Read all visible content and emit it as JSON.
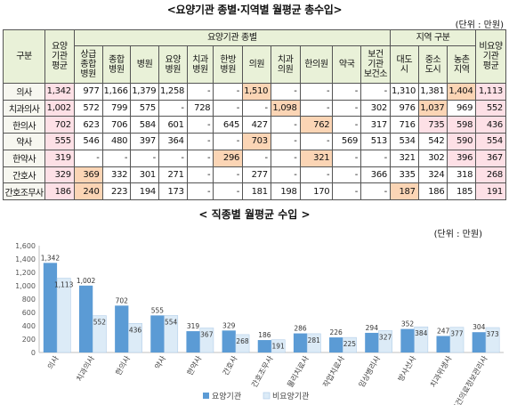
{
  "table": {
    "title": "<요양기관 종별·지역별 월평균 총수입>",
    "unit": "(단위 : 만원)",
    "header": {
      "group_col": "구분",
      "avg_col": "요양\n기관\n평균",
      "type_group": "요양기관 종별",
      "region_group": "지역 구분",
      "nonmed_col": "비요양\n기관\n평균",
      "type_cols": [
        "상급\n종합\n병원",
        "종합\n병원",
        "병원",
        "요양\n병원",
        "치과\n병원",
        "한방\n병원",
        "의원",
        "치과\n의원",
        "한의원",
        "약국",
        "보건\n기관\n보건소"
      ],
      "region_cols": [
        "대도\n시",
        "중소\n도시",
        "농촌\n지역"
      ]
    },
    "rows": [
      {
        "label": "의사",
        "cells": [
          "1,342",
          "977",
          "1,166",
          "1,379",
          "1,258",
          "-",
          "-",
          "1,510",
          "-",
          "-",
          "-",
          "-",
          "1,310",
          "1,381",
          "1,404",
          "1,113"
        ]
      },
      {
        "label": "치과의사",
        "cells": [
          "1,002",
          "572",
          "799",
          "575",
          "-",
          "728",
          "-",
          "-",
          "1,098",
          "-",
          "-",
          "302",
          "976",
          "1,037",
          "969",
          "552"
        ]
      },
      {
        "label": "한의사",
        "cells": [
          "702",
          "623",
          "706",
          "584",
          "601",
          "-",
          "645",
          "427",
          "-",
          "762",
          "-",
          "317",
          "716",
          "735",
          "598",
          "436"
        ]
      },
      {
        "label": "약사",
        "cells": [
          "555",
          "546",
          "480",
          "397",
          "364",
          "-",
          "-",
          "703",
          "-",
          "-",
          "569",
          "513",
          "534",
          "542",
          "590",
          "554"
        ]
      },
      {
        "label": "한약사",
        "cells": [
          "319",
          "-",
          "-",
          "-",
          "-",
          "-",
          "296",
          "-",
          "-",
          "321",
          "-",
          "-",
          "321",
          "302",
          "396",
          "367"
        ]
      },
      {
        "label": "간호사",
        "cells": [
          "329",
          "369",
          "332",
          "301",
          "271",
          "-",
          "-",
          "277",
          "-",
          "-",
          "-",
          "366",
          "335",
          "324",
          "318",
          "268"
        ]
      },
      {
        "label": "간호조무사",
        "cells": [
          "186",
          "240",
          "223",
          "194",
          "173",
          "-",
          "-",
          "181",
          "198",
          "170",
          "-",
          "-",
          "187",
          "186",
          "185",
          "191"
        ]
      }
    ],
    "highlights": {
      "orange": [
        "0-14",
        "0-7",
        "1-8",
        "1-13",
        "2-9",
        "3-7",
        "4-6",
        "4-9",
        "5-1",
        "6-1",
        "6-12"
      ],
      "pink": [
        "0-0",
        "1-0",
        "2-0",
        "3-0",
        "4-0",
        "5-0",
        "6-0",
        "0-15",
        "1-15",
        "2-15",
        "3-15",
        "4-15",
        "5-15",
        "6-15",
        "2-14",
        "3-14",
        "4-14",
        "2-13",
        "1-13"
      ]
    }
  },
  "chart_title": "< 직종별 월평균 수입 >",
  "chart_unit": "(단위 : 만원)",
  "chart_data": {
    "type": "bar",
    "categories": [
      "의사",
      "치과의사",
      "한의사",
      "약사",
      "한약사",
      "간호사",
      "간호조무사",
      "물리치료사",
      "작업치료사",
      "임상병리사",
      "방사선사",
      "치과위생사",
      "보건의료정보관리사"
    ],
    "series": [
      {
        "name": "요양기관",
        "values": [
          1342,
          1002,
          702,
          555,
          319,
          329,
          186,
          286,
          226,
          294,
          352,
          247,
          304
        ],
        "color": "#5b9bd5"
      },
      {
        "name": "비요양기관",
        "values": [
          1113,
          552,
          436,
          554,
          367,
          268,
          191,
          281,
          225,
          327,
          384,
          377,
          373
        ],
        "color": "#dcebf7"
      }
    ],
    "ylim": [
      0,
      1600
    ],
    "yticks": [
      0,
      200,
      400,
      600,
      800,
      1000,
      1200,
      1400,
      1600
    ],
    "grid": false,
    "legend": "bottom"
  }
}
